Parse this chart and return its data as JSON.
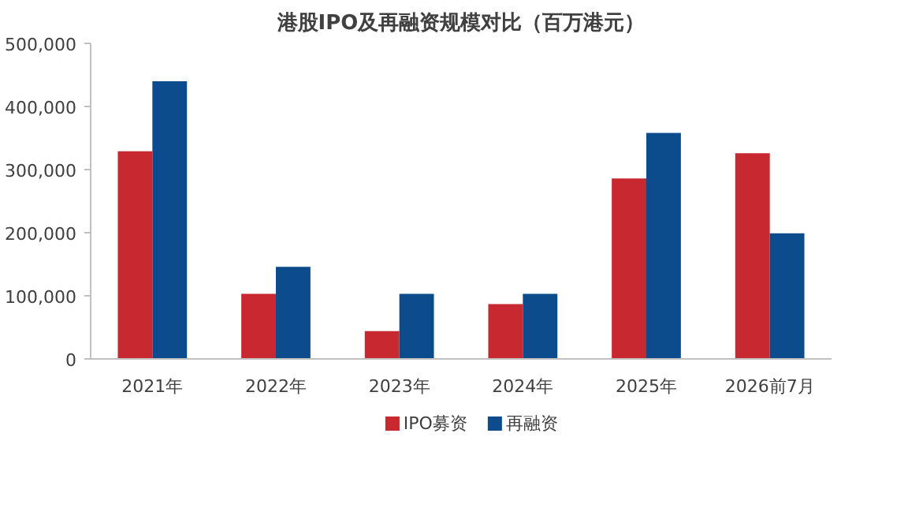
{
  "chart_data": {
    "type": "bar",
    "title": "港股IPO及再融资规模对比（百万港元）",
    "categories": [
      "2021年",
      "2022年",
      "2023年",
      "2024年",
      "2025年",
      "2026前7月"
    ],
    "series": [
      {
        "name": "IPO募资",
        "color": "#c8282f",
        "values": [
          329000,
          103000,
          44000,
          87000,
          286000,
          326000
        ]
      },
      {
        "name": "再融资",
        "color": "#0c4c8c",
        "values": [
          440000,
          146000,
          103000,
          103000,
          358000,
          199000
        ]
      }
    ],
    "ylim": [
      0,
      500000
    ],
    "yticks": [
      {
        "value": 0,
        "label": "0"
      },
      {
        "value": 100000,
        "label": "100,000"
      },
      {
        "value": 200000,
        "label": "200,000"
      },
      {
        "value": 300000,
        "label": "300,000"
      },
      {
        "value": 400000,
        "label": "400,000"
      },
      {
        "value": 500000,
        "label": "500,000"
      }
    ],
    "grid": false,
    "legend": "bottom"
  }
}
